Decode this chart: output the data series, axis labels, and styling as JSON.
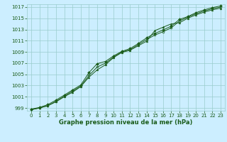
{
  "title": "Graphe pression niveau de la mer (hPa)",
  "bg_color": "#cceeff",
  "grid_color": "#99cccc",
  "line_color": "#1a5c1a",
  "xlim": [
    -0.5,
    23.5
  ],
  "ylim": [
    998.5,
    1017.5
  ],
  "yticks": [
    999,
    1001,
    1003,
    1005,
    1007,
    1009,
    1011,
    1013,
    1015,
    1017
  ],
  "xticks": [
    0,
    1,
    2,
    3,
    4,
    5,
    6,
    7,
    8,
    9,
    10,
    11,
    12,
    13,
    14,
    15,
    16,
    17,
    18,
    19,
    20,
    21,
    22,
    23
  ],
  "series1_x": [
    0,
    1,
    2,
    3,
    4,
    5,
    6,
    7,
    8,
    9,
    10,
    11,
    12,
    13,
    14,
    15,
    16,
    17,
    18,
    19,
    20,
    21,
    22,
    23
  ],
  "series1_y": [
    998.8,
    999.1,
    999.6,
    1000.4,
    1001.3,
    1002.2,
    1003.1,
    1005.3,
    1006.9,
    1007.3,
    1008.3,
    1009.1,
    1009.6,
    1010.5,
    1011.5,
    1012.3,
    1012.9,
    1013.6,
    1014.8,
    1015.3,
    1016.0,
    1016.5,
    1016.9,
    1017.2
  ],
  "series2_x": [
    0,
    1,
    2,
    3,
    4,
    5,
    6,
    7,
    8,
    9,
    10,
    11,
    12,
    13,
    14,
    15,
    16,
    17,
    18,
    19,
    20,
    21,
    22,
    23
  ],
  "series2_y": [
    998.7,
    999.0,
    999.4,
    1000.1,
    1001.0,
    1001.8,
    1002.8,
    1004.5,
    1005.8,
    1006.7,
    1008.0,
    1008.9,
    1009.3,
    1010.1,
    1010.9,
    1012.8,
    1013.4,
    1014.0,
    1014.2,
    1015.0,
    1015.6,
    1016.1,
    1016.5,
    1016.8
  ],
  "series3_x": [
    0,
    1,
    2,
    3,
    4,
    5,
    6,
    7,
    8,
    9,
    10,
    11,
    12,
    13,
    14,
    15,
    16,
    17,
    18,
    19,
    20,
    21,
    22,
    23
  ],
  "series3_y": [
    998.7,
    999.0,
    999.4,
    1000.2,
    1001.1,
    1002.0,
    1002.9,
    1004.8,
    1006.3,
    1007.0,
    1008.1,
    1009.0,
    1009.4,
    1010.3,
    1011.2,
    1012.0,
    1012.6,
    1013.3,
    1014.5,
    1015.2,
    1015.8,
    1016.3,
    1016.7,
    1017.0
  ],
  "marker1": "D",
  "marker2": "^",
  "marker3": "o",
  "lw": 0.7,
  "ms": 2.0,
  "tick_fontsize": 5.0,
  "label_fontsize": 6.0
}
